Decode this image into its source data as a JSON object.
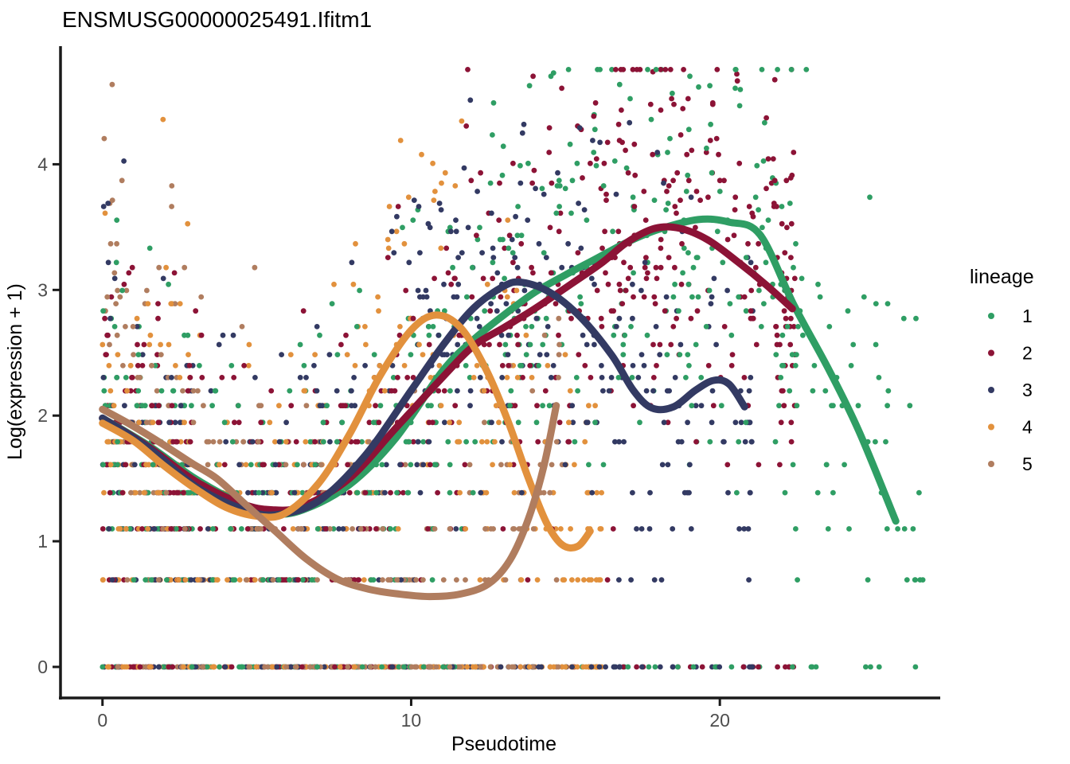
{
  "title": "ENSMUSG00000025491.Ifitm1",
  "x_axis": {
    "label": "Pseudotime",
    "tick_labels": [
      "0",
      "10",
      "20"
    ],
    "tick_values": [
      0,
      10,
      20
    ]
  },
  "y_axis": {
    "label": "Log(expression + 1)",
    "tick_labels": [
      "0",
      "1",
      "2",
      "3",
      "4"
    ],
    "tick_values": [
      0,
      1,
      2,
      3,
      4
    ]
  },
  "legend": {
    "title": "lineage",
    "items": [
      {
        "label": "1",
        "color": "#2f9e64"
      },
      {
        "label": "2",
        "color": "#8c1336"
      },
      {
        "label": "3",
        "color": "#333a63"
      },
      {
        "label": "4",
        "color": "#e2913d"
      },
      {
        "label": "5",
        "color": "#b07d5f"
      }
    ]
  },
  "colors": {
    "background": "#ffffff",
    "axis_line": "#1a1a1a",
    "tick_label": "#4d4d4d",
    "text": "#000000"
  },
  "chart_data": {
    "type": "scatter",
    "title": "ENSMUSG00000025491.Ifitm1",
    "xlabel": "Pseudotime",
    "ylabel": "Log(expression + 1)",
    "xlim": [
      -1.36,
      27.14
    ],
    "ylim": [
      -0.247,
      4.94
    ],
    "grid": false,
    "legend_position": "right",
    "y_value_rule": "points lie at ln(count+1) for integer counts 0,1,2,...",
    "smoothers": [
      {
        "name": "1",
        "color": "#2f9e64",
        "points": [
          [
            0,
            1.98
          ],
          [
            1.5,
            1.76
          ],
          [
            3,
            1.5
          ],
          [
            4.5,
            1.3
          ],
          [
            5.5,
            1.22
          ],
          [
            6.5,
            1.25
          ],
          [
            8,
            1.45
          ],
          [
            9.5,
            1.82
          ],
          [
            11,
            2.35
          ],
          [
            12,
            2.6
          ],
          [
            13,
            2.8
          ],
          [
            14,
            2.98
          ],
          [
            15,
            3.12
          ],
          [
            16,
            3.25
          ],
          [
            17,
            3.38
          ],
          [
            18,
            3.48
          ],
          [
            19.3,
            3.56
          ],
          [
            20.3,
            3.54
          ],
          [
            21.3,
            3.44
          ],
          [
            22.4,
            2.88
          ],
          [
            23.5,
            2.38
          ],
          [
            24.5,
            1.88
          ],
          [
            25.7,
            1.16
          ]
        ]
      },
      {
        "name": "2",
        "color": "#8c1336",
        "points": [
          [
            0,
            1.98
          ],
          [
            1.5,
            1.75
          ],
          [
            3,
            1.48
          ],
          [
            4.5,
            1.3
          ],
          [
            5.5,
            1.25
          ],
          [
            6.5,
            1.28
          ],
          [
            8,
            1.5
          ],
          [
            9.5,
            1.9
          ],
          [
            11,
            2.3
          ],
          [
            12,
            2.55
          ],
          [
            13,
            2.7
          ],
          [
            14,
            2.85
          ],
          [
            15.2,
            3.05
          ],
          [
            16.2,
            3.22
          ],
          [
            17,
            3.38
          ],
          [
            17.9,
            3.49
          ],
          [
            18.7,
            3.49
          ],
          [
            19.6,
            3.4
          ],
          [
            20.6,
            3.22
          ],
          [
            21.5,
            3.04
          ],
          [
            22.35,
            2.85
          ]
        ]
      },
      {
        "name": "3",
        "color": "#333a63",
        "points": [
          [
            0,
            1.98
          ],
          [
            1.5,
            1.74
          ],
          [
            3,
            1.44
          ],
          [
            4.5,
            1.26
          ],
          [
            5.6,
            1.21
          ],
          [
            7,
            1.32
          ],
          [
            8.5,
            1.68
          ],
          [
            10,
            2.2
          ],
          [
            11,
            2.55
          ],
          [
            12,
            2.85
          ],
          [
            13,
            3.03
          ],
          [
            13.6,
            3.06
          ],
          [
            14.5,
            2.98
          ],
          [
            15.5,
            2.78
          ],
          [
            16.5,
            2.48
          ],
          [
            17.2,
            2.2
          ],
          [
            17.8,
            2.06
          ],
          [
            18.5,
            2.07
          ],
          [
            19.2,
            2.2
          ],
          [
            19.8,
            2.28
          ],
          [
            20.3,
            2.25
          ],
          [
            20.8,
            2.07
          ]
        ]
      },
      {
        "name": "4",
        "color": "#e2913d",
        "points": [
          [
            0,
            1.94
          ],
          [
            1,
            1.8
          ],
          [
            2,
            1.6
          ],
          [
            3,
            1.42
          ],
          [
            4,
            1.27
          ],
          [
            5,
            1.2
          ],
          [
            5.9,
            1.22
          ],
          [
            7,
            1.46
          ],
          [
            8,
            1.85
          ],
          [
            9,
            2.32
          ],
          [
            10,
            2.68
          ],
          [
            10.8,
            2.8
          ],
          [
            11.6,
            2.7
          ],
          [
            12.4,
            2.38
          ],
          [
            13.1,
            1.98
          ],
          [
            13.8,
            1.5
          ],
          [
            14.4,
            1.14
          ],
          [
            14.9,
            0.97
          ],
          [
            15.4,
            0.96
          ],
          [
            15.8,
            1.08
          ]
        ]
      },
      {
        "name": "5",
        "color": "#b07d5f",
        "points": [
          [
            0,
            2.05
          ],
          [
            0.9,
            1.93
          ],
          [
            1.9,
            1.78
          ],
          [
            2.9,
            1.62
          ],
          [
            3.7,
            1.5
          ],
          [
            4.6,
            1.3
          ],
          [
            5.6,
            1.08
          ],
          [
            6.6,
            0.86
          ],
          [
            7.6,
            0.7
          ],
          [
            8.6,
            0.62
          ],
          [
            9.6,
            0.58
          ],
          [
            10.6,
            0.56
          ],
          [
            11.6,
            0.58
          ],
          [
            12.5,
            0.66
          ],
          [
            13.2,
            0.85
          ],
          [
            13.8,
            1.18
          ],
          [
            14.3,
            1.6
          ],
          [
            14.7,
            2.08
          ]
        ]
      }
    ],
    "scatter_spec": {
      "seed": 123457,
      "point_radius": 3.4,
      "count_cap": 115,
      "lineages": [
        {
          "name": "1",
          "color": "#2f9e64",
          "n": 620,
          "dropout": 0.1,
          "sigma": 0.85,
          "x_segments": [
            [
              0,
              3,
              0.2
            ],
            [
              3,
              4.5,
              0.03
            ],
            [
              4.5,
              7.5,
              0.1
            ],
            [
              7.5,
              11,
              0.12
            ],
            [
              11,
              16,
              0.17
            ],
            [
              16,
              23,
              0.28
            ],
            [
              23,
              26.6,
              0.1
            ]
          ]
        },
        {
          "name": "2",
          "color": "#8c1336",
          "n": 620,
          "dropout": 0.08,
          "sigma": 0.85,
          "x_segments": [
            [
              0,
              3,
              0.2
            ],
            [
              3,
              4.5,
              0.03
            ],
            [
              4.5,
              7.5,
              0.1
            ],
            [
              7.5,
              11,
              0.13
            ],
            [
              11,
              16,
              0.2
            ],
            [
              16,
              22.1,
              0.28
            ],
            [
              22.1,
              22.45,
              0.06
            ]
          ]
        },
        {
          "name": "3",
          "color": "#333a63",
          "n": 500,
          "dropout": 0.12,
          "sigma": 0.9,
          "x_segments": [
            [
              0,
              3,
              0.22
            ],
            [
              3,
              4.5,
              0.03
            ],
            [
              4.5,
              7.5,
              0.12
            ],
            [
              7.5,
              11,
              0.14
            ],
            [
              11,
              16,
              0.26
            ],
            [
              16,
              20.9,
              0.19
            ],
            [
              20.9,
              21.1,
              0.04
            ]
          ]
        },
        {
          "name": "4",
          "color": "#e2913d",
          "n": 380,
          "dropout": 0.14,
          "sigma": 0.85,
          "x_segments": [
            [
              0,
              3,
              0.3
            ],
            [
              3,
              4.5,
              0.05
            ],
            [
              4.5,
              7.5,
              0.15
            ],
            [
              7.5,
              11,
              0.2
            ],
            [
              11,
              16.2,
              0.3
            ]
          ]
        },
        {
          "name": "5",
          "color": "#b07d5f",
          "n": 330,
          "dropout": 0.14,
          "sigma": 0.85,
          "x_segments": [
            [
              0,
              3,
              0.3
            ],
            [
              3,
              4.5,
              0.06
            ],
            [
              4.5,
              7.5,
              0.18
            ],
            [
              7.5,
              11,
              0.22
            ],
            [
              11,
              14.7,
              0.2
            ],
            [
              14.7,
              15.05,
              0.04
            ]
          ]
        }
      ]
    }
  }
}
